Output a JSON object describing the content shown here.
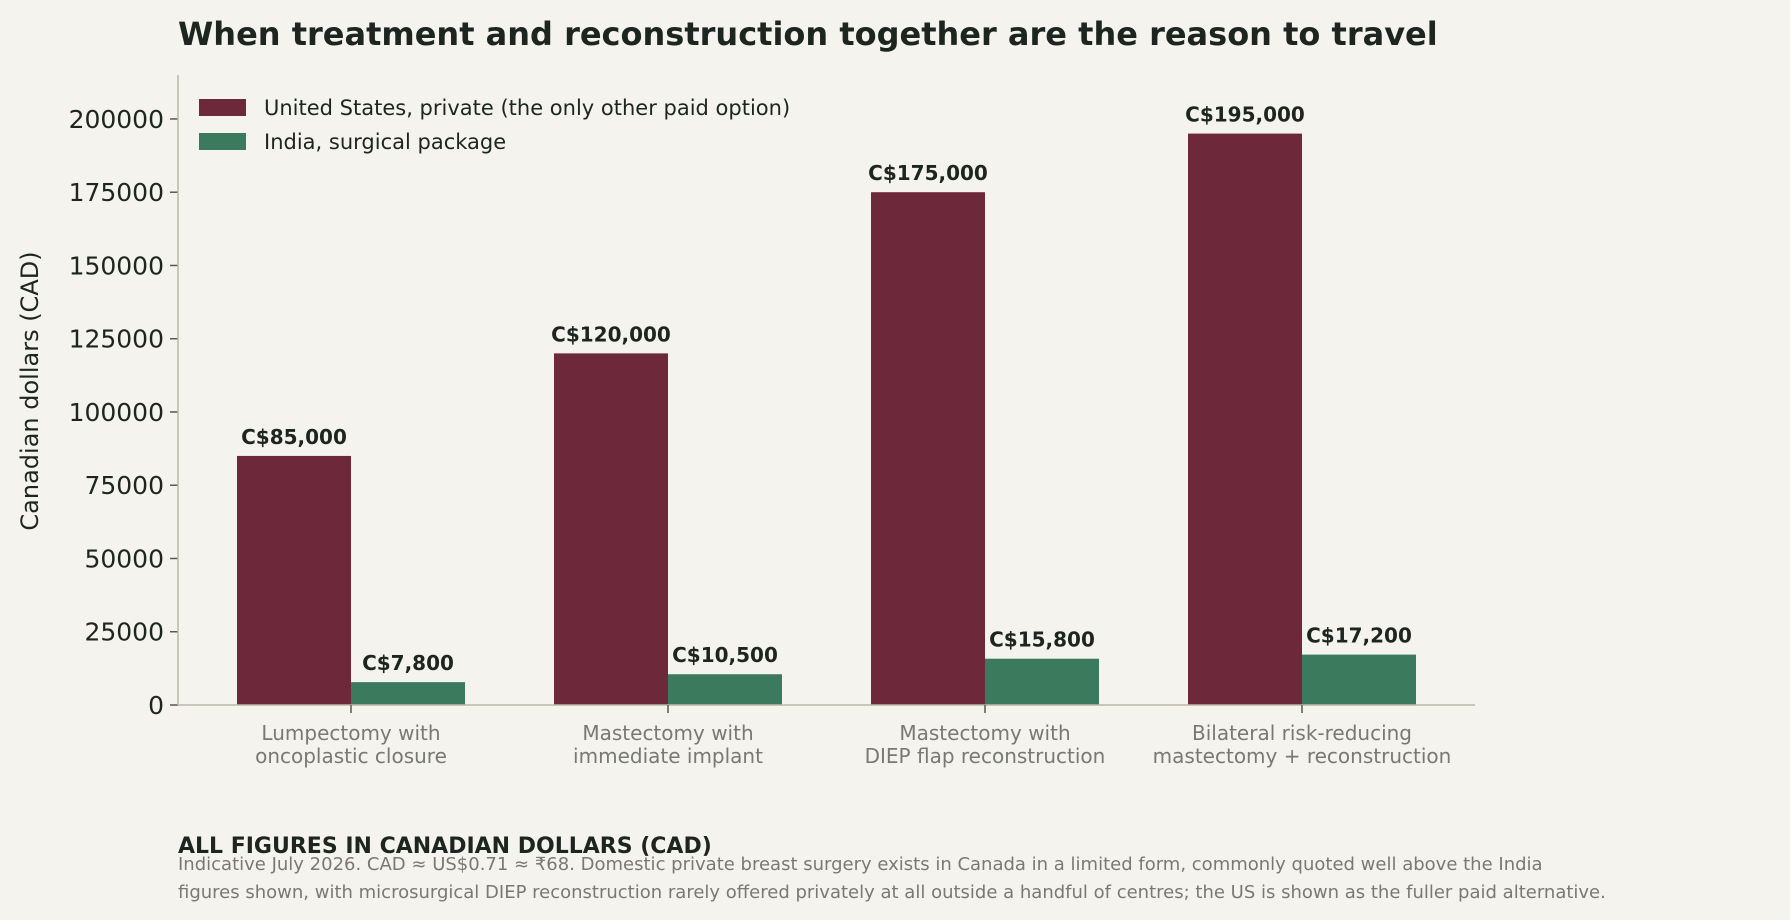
{
  "chart_data": {
    "type": "bar",
    "title": "When treatment and reconstruction together are the reason to travel",
    "ylabel": "Canadian dollars (CAD)",
    "xlabel": "",
    "ylim": [
      0,
      215000
    ],
    "yticks": [
      0,
      25000,
      50000,
      75000,
      100000,
      125000,
      150000,
      175000,
      200000
    ],
    "grid": false,
    "legend_position": "top-left",
    "categories": [
      [
        "Lumpectomy with",
        "oncoplastic closure"
      ],
      [
        "Mastectomy with",
        "immediate implant"
      ],
      [
        "Mastectomy with",
        "DIEP flap reconstruction"
      ],
      [
        "Bilateral risk-reducing",
        "mastectomy + reconstruction"
      ]
    ],
    "series": [
      {
        "name": "United States, private (the only other paid option)",
        "color": "#6d2839",
        "values": [
          85000,
          120000,
          175000,
          195000
        ],
        "labels": [
          "C$85,000",
          "C$120,000",
          "C$175,000",
          "C$195,000"
        ]
      },
      {
        "name": "India, surgical package",
        "color": "#3c7a5e",
        "values": [
          7800,
          10500,
          15800,
          17200
        ],
        "labels": [
          "C$7,800",
          "C$10,500",
          "C$15,800",
          "C$17,200"
        ]
      }
    ]
  },
  "footnote": {
    "heading": "ALL FIGURES IN CANADIAN DOLLARS (CAD)",
    "lines": [
      "Indicative July 2026. CAD ≈ US$0.71 ≈ ₹68. Domestic private breast surgery exists in Canada in a limited form, commonly quoted well above the India",
      "figures shown, with microsurgical DIEP reconstruction rarely offered privately at all outside a handful of centres; the US is shown as the fuller paid alternative."
    ]
  }
}
